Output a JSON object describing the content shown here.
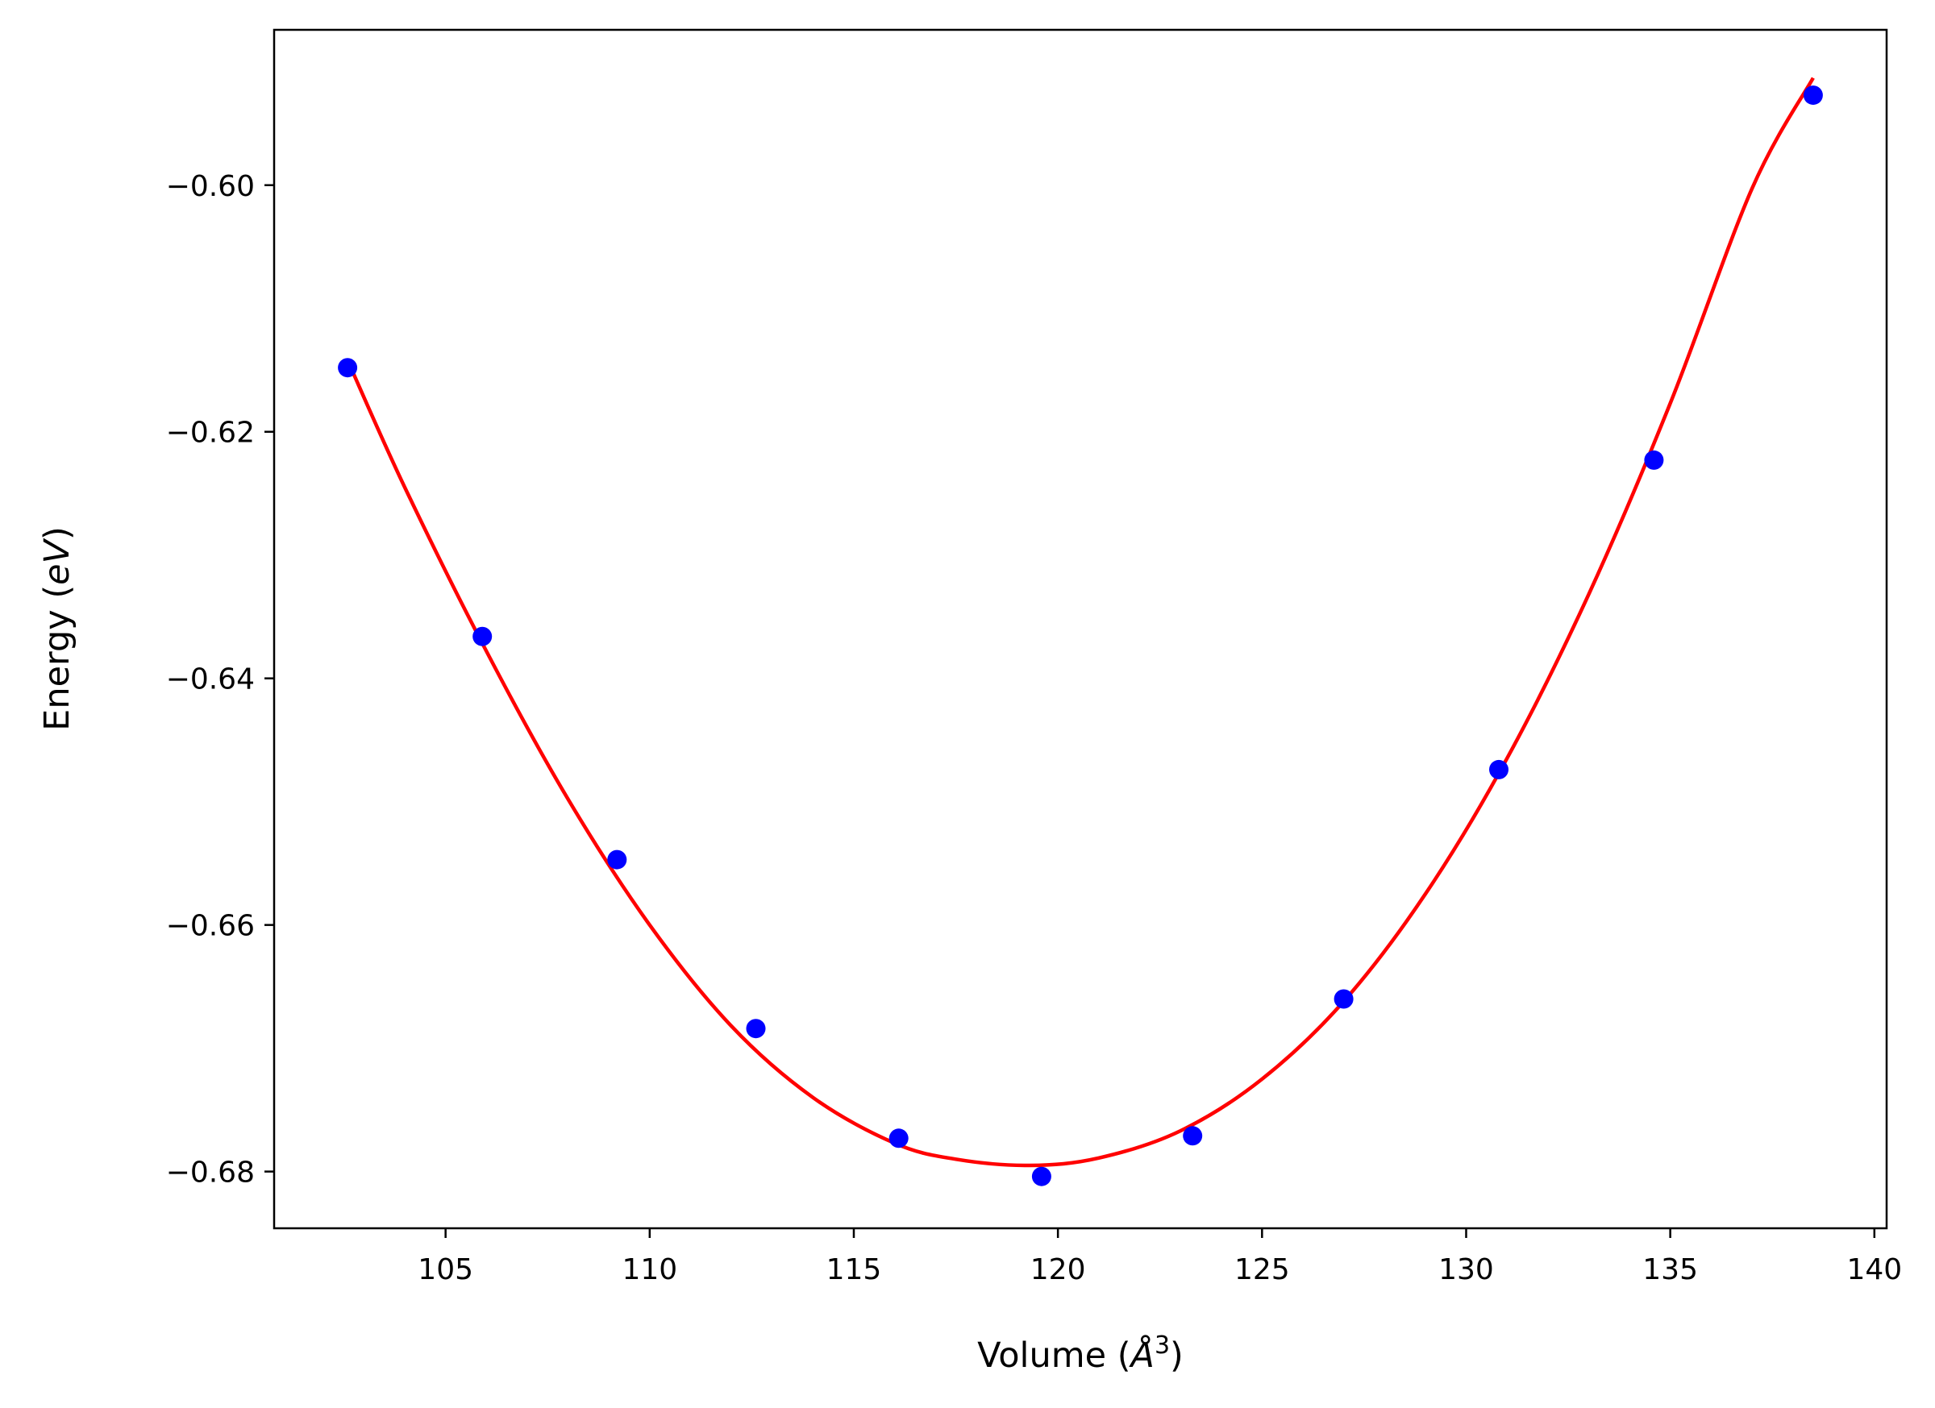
{
  "chart_data": {
    "type": "scatter",
    "xlabel": {
      "prefix": "Volume (",
      "symbol": "Å",
      "exponent": "3",
      "suffix": ")"
    },
    "ylabel": {
      "prefix": "Energy (",
      "symbol": "eV",
      "suffix": ")"
    },
    "xlim": [
      100.8,
      140.3
    ],
    "ylim": [
      -0.6846,
      -0.5874
    ],
    "xticks": [
      105,
      110,
      115,
      120,
      125,
      130,
      135,
      140
    ],
    "yticks": [
      -0.6,
      -0.62,
      -0.64,
      -0.66,
      -0.68
    ],
    "ytick_labels": [
      "−0.60",
      "−0.62",
      "−0.64",
      "−0.66",
      "−0.68"
    ],
    "grid": false,
    "series": [
      {
        "kind": "points",
        "color": "#0000ff",
        "x": [
          102.6,
          105.9,
          109.2,
          112.6,
          116.1,
          119.6,
          123.3,
          127.0,
          130.8,
          134.6,
          138.5
        ],
        "y": [
          -0.6148,
          -0.6366,
          -0.6547,
          -0.6684,
          -0.6773,
          -0.6804,
          -0.6771,
          -0.666,
          -0.6474,
          -0.6223,
          -0.5927
        ]
      },
      {
        "kind": "fit-curve",
        "color": "#ff0000",
        "x": [
          102.6,
          104.0,
          106.0,
          108.0,
          110.0,
          112.0,
          114.0,
          116.0,
          117.5,
          119.3,
          121.0,
          123.0,
          125.0,
          127.0,
          129.0,
          131.0,
          133.0,
          135.0,
          137.0,
          138.5
        ],
        "y": [
          -0.6142,
          -0.6245,
          -0.6378,
          -0.6498,
          -0.66,
          -0.6682,
          -0.674,
          -0.6777,
          -0.679,
          -0.6795,
          -0.6789,
          -0.6767,
          -0.6725,
          -0.6662,
          -0.6575,
          -0.6465,
          -0.6332,
          -0.6177,
          -0.6003,
          -0.5913
        ]
      }
    ]
  }
}
